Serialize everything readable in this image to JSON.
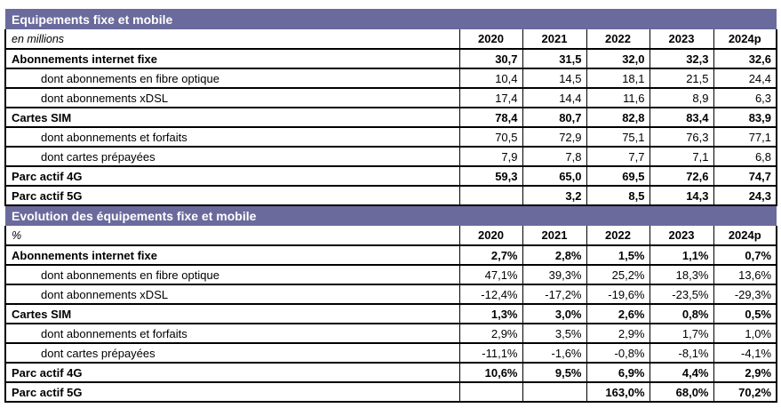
{
  "colors": {
    "section_header_bg": "#6a6a9d",
    "section_header_text": "#ffffff",
    "border": "#000000",
    "background": "#ffffff"
  },
  "columns": [
    "2020",
    "2021",
    "2022",
    "2023",
    "2024p"
  ],
  "sections": [
    {
      "title": "Equipements fixe et mobile",
      "unit": "en millions",
      "rows": [
        {
          "label": "Abonnements internet fixe",
          "bold": true,
          "indent": false,
          "values": [
            "30,7",
            "31,5",
            "32,0",
            "32,3",
            "32,6"
          ]
        },
        {
          "label": "dont abonnements en fibre optique",
          "bold": false,
          "indent": true,
          "values": [
            "10,4",
            "14,5",
            "18,1",
            "21,5",
            "24,4"
          ]
        },
        {
          "label": "dont abonnements xDSL",
          "bold": false,
          "indent": true,
          "values": [
            "17,4",
            "14,4",
            "11,6",
            "8,9",
            "6,3"
          ]
        },
        {
          "label": "Cartes SIM",
          "bold": true,
          "indent": false,
          "values": [
            "78,4",
            "80,7",
            "82,8",
            "83,4",
            "83,9"
          ]
        },
        {
          "label": "dont abonnements et forfaits",
          "bold": false,
          "indent": true,
          "values": [
            "70,5",
            "72,9",
            "75,1",
            "76,3",
            "77,1"
          ]
        },
        {
          "label": "dont cartes prépayées",
          "bold": false,
          "indent": true,
          "values": [
            "7,9",
            "7,8",
            "7,7",
            "7,1",
            "6,8"
          ]
        },
        {
          "label": "Parc actif 4G",
          "bold": true,
          "indent": false,
          "values": [
            "59,3",
            "65,0",
            "69,5",
            "72,6",
            "74,7"
          ]
        },
        {
          "label": "Parc actif 5G",
          "bold": true,
          "indent": false,
          "values": [
            "",
            "3,2",
            "8,5",
            "14,3",
            "24,3"
          ]
        }
      ]
    },
    {
      "title": "Evolution des équipements fixe et mobile",
      "unit": "%",
      "rows": [
        {
          "label": "Abonnements internet fixe",
          "bold": true,
          "indent": false,
          "values": [
            "2,7%",
            "2,8%",
            "1,5%",
            "1,1%",
            "0,7%"
          ]
        },
        {
          "label": "dont abonnements en fibre optique",
          "bold": false,
          "indent": true,
          "values": [
            "47,1%",
            "39,3%",
            "25,2%",
            "18,3%",
            "13,6%"
          ]
        },
        {
          "label": "dont abonnements xDSL",
          "bold": false,
          "indent": true,
          "values": [
            "-12,4%",
            "-17,2%",
            "-19,6%",
            "-23,5%",
            "-29,3%"
          ]
        },
        {
          "label": "Cartes SIM",
          "bold": true,
          "indent": false,
          "values": [
            "1,3%",
            "3,0%",
            "2,6%",
            "0,8%",
            "0,5%"
          ]
        },
        {
          "label": "dont abonnements et forfaits",
          "bold": false,
          "indent": true,
          "values": [
            "2,9%",
            "3,5%",
            "2,9%",
            "1,7%",
            "1,0%"
          ]
        },
        {
          "label": "dont cartes prépayées",
          "bold": false,
          "indent": true,
          "values": [
            "-11,1%",
            "-1,6%",
            "-0,8%",
            "-8,1%",
            "-4,1%"
          ]
        },
        {
          "label": "Parc actif 4G",
          "bold": true,
          "indent": false,
          "values": [
            "10,6%",
            "9,5%",
            "6,9%",
            "4,4%",
            "2,9%"
          ]
        },
        {
          "label": "Parc actif 5G",
          "bold": true,
          "indent": false,
          "values": [
            "",
            "",
            "163,0%",
            "68,0%",
            "70,2%"
          ]
        }
      ]
    }
  ]
}
